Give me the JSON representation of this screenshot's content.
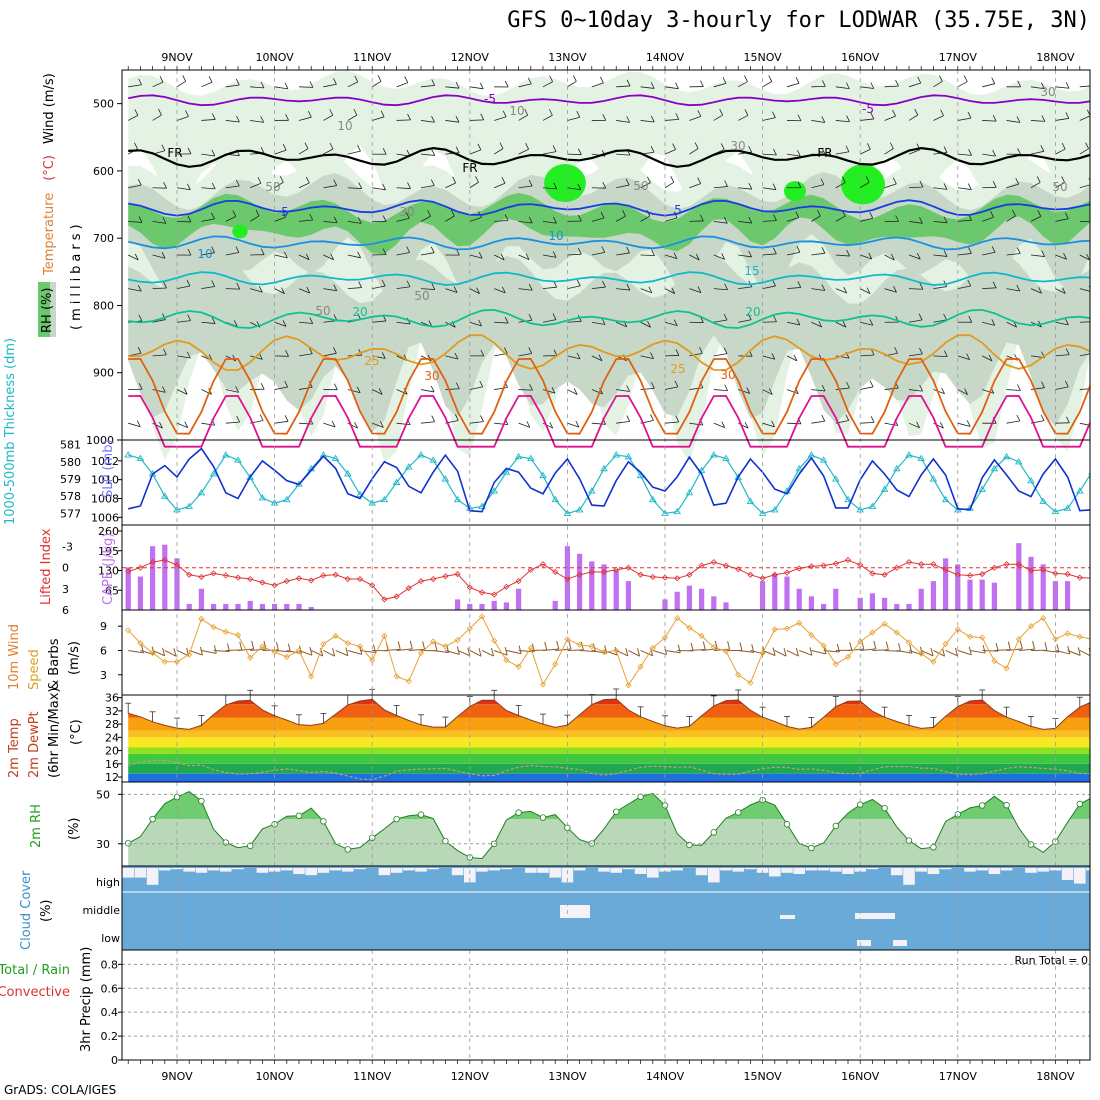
{
  "title": "GFS 0~10day 3-hourly for LODWAR (35.75E, 3N)",
  "footer": "GrADS: COLA/IGES",
  "run_total": "Run Total = 0",
  "colors": {
    "grid": "#9a9a9a",
    "rh_light": "#e4f2e4",
    "rh_mid": "#c8d8c8",
    "rh_dark": "#6cc86c",
    "rh_bright": "#22ee22",
    "temp_m5": "#8a00c8",
    "temp_fr": "#000000",
    "temp_5": "#1440e0",
    "temp_10": "#1a90e0",
    "temp_15": "#10b8c8",
    "temp_20": "#10c090",
    "temp_25": "#e09a20",
    "temp_30": "#e06010",
    "temp_35": "#e01090",
    "slp": "#1030d0",
    "thickness": "#20b8c8",
    "cape": "#c070f0",
    "lifted": "#e03030",
    "wind_speed": "#e8a030",
    "barbs": "#8a5a2a",
    "rh_line": "#208020",
    "cloud": "#6aaad8",
    "cloud_bg": "#f4f2f8"
  },
  "time_axis": {
    "dates": [
      "9NOV",
      "10NOV",
      "11NOV",
      "12NOV",
      "13NOV",
      "14NOV",
      "15NOV",
      "16NOV",
      "17NOV",
      "18NOV"
    ]
  },
  "chart_data": [
    {
      "type": "line",
      "panel": "upper-air cross section",
      "ylabel_parts": [
        "Temperature",
        "(°C)",
        "Wind (m/s)"
      ],
      "ylabel2": "(millibars)",
      "legend_label": "RH (%)",
      "yticks": [
        "500",
        "600",
        "700",
        "800",
        "900",
        "1000"
      ],
      "ylim": [
        450,
        1000
      ],
      "x_start_hours": -12,
      "x_end_hours": 234,
      "step_hours": 3,
      "contour_labels": [
        "-5",
        "-5",
        "FR",
        "FR",
        "FR",
        "5",
        "5",
        "10",
        "10",
        "15",
        "20",
        "20",
        "25",
        "25",
        "30",
        "30"
      ],
      "rh_labels": [
        "10",
        "10",
        "30",
        "30",
        "30",
        "50",
        "50",
        "50",
        "50",
        "50"
      ],
      "isotherms": [
        {
          "label": "-5",
          "mean_p": 495,
          "amp": 8
        },
        {
          "label": "FR",
          "mean_p": 580,
          "amp": 14
        },
        {
          "label": "5",
          "mean_p": 655,
          "amp": 12
        },
        {
          "label": "10",
          "mean_p": 707,
          "amp": 10
        },
        {
          "label": "15",
          "mean_p": 760,
          "amp": 10
        },
        {
          "label": "20",
          "mean_p": 820,
          "amp": 14
        },
        {
          "label": "25",
          "mean_p": 870,
          "amp": 28
        },
        {
          "label": "30",
          "mean_p": 935,
          "amp": 60
        },
        {
          "label": "35",
          "mean_p": 990,
          "amp": 50
        }
      ]
    },
    {
      "type": "line",
      "panel": "slp-thickness",
      "ylabel_left": "1000-500mb Thickness (dm)",
      "ylabel_right": "SLP (mb)",
      "left_ticks": [
        "581",
        "580",
        "579",
        "578",
        "577"
      ],
      "right_ticks": [
        "1012",
        "1010",
        "1008",
        "1006"
      ],
      "series": [
        {
          "name": "SLP",
          "values": [
            1006.9,
            1007.2,
            1010.6,
            1011.5,
            1010.3,
            1012.2,
            1013.3,
            1011.4,
            1008.6,
            1008.0,
            1010.3,
            1012.0,
            1011.0,
            1009.9,
            1009.5,
            1011.0,
            1012.5,
            1011.2,
            1008.5,
            1008.0,
            1010.1,
            1011.9,
            1011.3,
            1009.3,
            1008.6,
            1010.8,
            1012.6,
            1010.9,
            1006.7,
            1006.6,
            1009.7,
            1011.2,
            1010.8,
            1009.1,
            1008.5,
            1010.7,
            1012.2,
            1010.1,
            1007.3,
            1007.2,
            1009.9,
            1011.9,
            1010.8,
            1009.2,
            1008.8,
            1010.3,
            1012.4,
            1010.6,
            1007.3,
            1007.5,
            1010.3,
            1012.2,
            1010.8,
            1009.0,
            1008.5,
            1010.6,
            1012.3,
            1010.4,
            1007.0,
            1007.0,
            1010.0,
            1012.0,
            1010.6,
            1008.9,
            1008.2,
            1010.5,
            1012.2,
            1010.5,
            1006.9,
            1006.8,
            1010.2,
            1012.1,
            1010.5,
            1008.8,
            1008.2,
            1010.6,
            1012.2,
            1010.3,
            1006.7,
            1006.8,
            1010.1,
            1012.1,
            1010.2,
            1008.3
          ]
        },
        {
          "name": "Thickness",
          "values": [
            580.4,
            580.2,
            579.3,
            578.0,
            577.2,
            577.4,
            578.2,
            579.3,
            580.4,
            580.1,
            579.1,
            577.9,
            577.6,
            577.8,
            578.7,
            579.6,
            580.4,
            580.2,
            579.3,
            578.1,
            577.6,
            577.8,
            578.8,
            579.7,
            580.4,
            580.1,
            579.0,
            577.8,
            577.3,
            577.4,
            578.3,
            579.4,
            580.3,
            580.2,
            579.2,
            577.8,
            577.0,
            577.2,
            578.3,
            579.6,
            580.4,
            580.3,
            579.2,
            577.8,
            577.0,
            577.1,
            578.2,
            579.5,
            580.4,
            580.2,
            579.1,
            577.7,
            577.0,
            577.2,
            578.3,
            579.6,
            580.4,
            580.1,
            579.0,
            577.8,
            577.2,
            577.4,
            578.4,
            579.6,
            580.4,
            580.2,
            579.0,
            577.8,
            577.2,
            577.3,
            578.4,
            579.6,
            580.3,
            580.0,
            578.9,
            577.7,
            577.1,
            577.3,
            578.3,
            579.4,
            580.2,
            580.0,
            578.8,
            577.4
          ]
        }
      ]
    },
    {
      "type": "bar",
      "panel": "cape-lifted-index",
      "ylabel_left": "Lifted Index",
      "ylabel_right": "CAPE (J/kg)",
      "left_ticks": [
        "-3",
        "0",
        "3",
        "6"
      ],
      "right_ticks": [
        "260",
        "195",
        "130",
        "65"
      ],
      "series": [
        {
          "name": "CAPE",
          "values": [
            140,
            110,
            210,
            215,
            170,
            20,
            70,
            20,
            20,
            20,
            30,
            20,
            20,
            20,
            20,
            10,
            0,
            0,
            0,
            0,
            0,
            0,
            0,
            0,
            0,
            0,
            0,
            35,
            20,
            20,
            30,
            25,
            70,
            0,
            0,
            30,
            210,
            185,
            160,
            150,
            130,
            95,
            0,
            0,
            35,
            60,
            80,
            70,
            45,
            25,
            0,
            0,
            95,
            120,
            110,
            70,
            45,
            20,
            70,
            0,
            40,
            55,
            40,
            20,
            20,
            70,
            95,
            170,
            150,
            100,
            100,
            90,
            0,
            220,
            175,
            150,
            95,
            95,
            0,
            55,
            55,
            65,
            0,
            0
          ]
        },
        {
          "name": "Lifted Index",
          "values": [
            0.5,
            0.0,
            -0.8,
            -1.1,
            -0.4,
            1.0,
            1.3,
            0.8,
            1.1,
            1.4,
            1.6,
            2.1,
            2.5,
            1.9,
            1.5,
            1.8,
            1.1,
            1.0,
            1.6,
            1.6,
            2.5,
            4.5,
            4.1,
            2.9,
            1.9,
            1.6,
            1.2,
            0.9,
            2.8,
            3.5,
            3.8,
            2.7,
            1.9,
            0.3,
            -0.5,
            0.6,
            1.6,
            1.0,
            0.6,
            0.6,
            0.3,
            0.0,
            1.0,
            1.3,
            1.4,
            1.5,
            1.0,
            -0.3,
            -0.8,
            -0.3,
            0.2,
            1.0,
            1.5,
            1.0,
            0.7,
            0.1,
            -0.2,
            -0.3,
            -0.6,
            -1.1,
            -0.4,
            0.8,
            1.0,
            0.0,
            -0.8,
            -0.5,
            -0.5,
            0.3,
            1.0,
            1.1,
            0.9,
            0.0,
            -0.5,
            -0.5,
            0.4,
            0.3,
            0.8,
            0.9,
            1.4,
            1.5,
            0.5,
            0.0,
            1.1,
            2.2
          ]
        }
      ]
    },
    {
      "type": "line",
      "panel": "10m wind",
      "ylabel_parts": [
        "10m Wind",
        "Speed",
        "& Barbs"
      ],
      "ylabel_units": "(m/s)",
      "yticks": [
        "9",
        "6",
        "3"
      ],
      "ylim": [
        0.5,
        11
      ],
      "series": [
        {
          "name": "Speed",
          "values": [
            8.5,
            6.9,
            5.7,
            4.6,
            4.6,
            5.5,
            9.9,
            8.9,
            8.3,
            7.9,
            5.1,
            6.5,
            5.8,
            5.2,
            6.0,
            2.8,
            6.8,
            7.8,
            6.9,
            6.5,
            4.8,
            7.8,
            2.8,
            2.2,
            5.7,
            7.1,
            6.5,
            7.3,
            8.7,
            10.2,
            7.2,
            4.8,
            4.0,
            6.3,
            1.8,
            4.3,
            7.4,
            6.7,
            6.5,
            5.8,
            6.0,
            1.7,
            4.0,
            6.3,
            7.6,
            10.0,
            8.8,
            7.8,
            6.4,
            5.9,
            3.0,
            2.0,
            5.7,
            8.6,
            8.7,
            9.4,
            7.9,
            6.6,
            4.3,
            5.2,
            7.1,
            8.2,
            9.3,
            8.2,
            7.0,
            5.6,
            4.6,
            6.8,
            8.6,
            7.7,
            7.6,
            4.7,
            3.8,
            7.4,
            9.0,
            10.0,
            7.4,
            8.1,
            7.7,
            7.4,
            7.5,
            3.8,
            1.3,
            7.1
          ]
        }
      ]
    },
    {
      "type": "area",
      "panel": "2m temperature",
      "ylabel_parts": [
        "2m Temp",
        "2m DewPt",
        "(6hr Min/Max)"
      ],
      "ylabel_units": "(°C)",
      "yticks": [
        "36",
        "32",
        "28",
        "24",
        "20",
        "16",
        "12"
      ],
      "ylim": [
        10.5,
        36.8
      ],
      "series": [
        {
          "name": "2m Temp",
          "values": [
            31.3,
            30.2,
            28.7,
            27.6,
            26.8,
            26.4,
            27.6,
            30.9,
            33.8,
            35.0,
            35.2,
            32.3,
            30.5,
            29.2,
            27.8,
            27.6,
            28.2,
            31.0,
            33.8,
            35.0,
            35.5,
            32.3,
            30.6,
            29.1,
            27.8,
            27.1,
            27.1,
            30.3,
            33.3,
            35.2,
            35.2,
            32.1,
            30.6,
            29.2,
            28.0,
            27.0,
            27.7,
            30.8,
            33.9,
            35.4,
            35.6,
            32.3,
            30.2,
            28.8,
            27.5,
            26.8,
            27.3,
            30.5,
            33.5,
            35.1,
            35.3,
            32.2,
            30.1,
            28.8,
            27.3,
            26.5,
            27.0,
            30.1,
            33.3,
            34.9,
            35.0,
            31.9,
            30.1,
            28.8,
            27.6,
            26.7,
            27.0,
            30.4,
            33.3,
            35.0,
            35.3,
            32.1,
            30.1,
            28.8,
            27.3,
            26.4,
            26.7,
            30.2,
            33.1,
            34.8,
            35.1,
            32.0,
            30.5,
            29.1,
            27.9,
            27.1,
            26.2,
            30.7
          ]
        },
        {
          "name": "2m DewPt",
          "values": [
            15.5,
            16.5,
            17.0,
            17.0,
            16.4,
            15.4,
            15.6,
            14.2,
            13.4,
            12.9,
            13.0,
            13.4,
            14.0,
            14.5,
            13.9,
            13.4,
            13.7,
            13.2,
            12.3,
            11.4,
            11.2,
            12.3,
            13.8,
            14.2,
            14.4,
            14.5,
            14.6,
            13.8,
            13.0,
            12.4,
            12.5,
            13.9,
            15.0,
            15.5,
            15.2,
            15.1,
            14.6,
            14.3,
            13.1,
            12.6,
            13.0,
            14.0,
            14.9,
            15.3,
            15.2,
            14.9,
            15.1,
            14.1,
            13.0,
            12.8,
            12.9,
            13.8,
            14.5,
            15.0,
            14.9,
            14.3,
            14.5,
            14.0,
            13.3,
            13.0,
            13.1,
            14.2,
            15.1,
            15.2,
            15.2,
            14.7,
            14.6,
            13.6,
            12.9,
            12.7,
            13.0,
            13.8,
            14.6,
            15.1,
            14.9,
            14.6,
            14.4,
            13.9,
            13.2,
            12.9,
            13.1,
            13.8,
            14.2,
            14.0
          ]
        }
      ]
    },
    {
      "type": "area",
      "panel": "2m RH",
      "ylabel": "2m RH",
      "ylabel_units": "(%)",
      "yticks": [
        "50",
        "30"
      ],
      "ylim": [
        21,
        55
      ],
      "series": [
        {
          "name": "2m RH",
          "values": [
            30.2,
            32.9,
            40.0,
            46.2,
            48.9,
            51.1,
            47.3,
            35.8,
            30.5,
            28.4,
            29.2,
            36.0,
            37.9,
            41.1,
            41.3,
            44.4,
            39.1,
            30.0,
            27.7,
            28.5,
            32.4,
            36.0,
            40.0,
            41.3,
            41.8,
            40.2,
            31.1,
            27.2,
            24.5,
            24.0,
            30.0,
            39.6,
            42.6,
            43.1,
            40.6,
            41.8,
            36.5,
            31.7,
            30.1,
            36.0,
            43.0,
            46.1,
            49.0,
            50.4,
            45.5,
            34.1,
            29.5,
            29.4,
            34.6,
            40.4,
            42.7,
            45.7,
            47.7,
            45.6,
            37.9,
            30.1,
            28.3,
            30.3,
            37.2,
            42.4,
            45.8,
            47.9,
            44.4,
            36.8,
            31.3,
            28.0,
            28.6,
            39.0,
            41.9,
            44.5,
            45.5,
            49.2,
            45.6,
            36.4,
            29.7,
            26.5,
            30.9,
            38.7,
            46.1,
            48.7,
            51.7,
            45.2,
            38.5,
            30.2,
            28.4,
            28.7,
            33.5,
            37.9,
            42.0,
            42.9,
            46.9,
            44.9
          ]
        }
      ]
    },
    {
      "type": "bar",
      "panel": "cloud cover",
      "ylabel_parts": [
        "Cloud Cover",
        "(%)"
      ],
      "level_labels": [
        "high",
        "middle",
        "low"
      ],
      "series": [
        {
          "name": "high",
          "values": [
            60,
            60,
            30,
            90,
            95,
            85,
            80,
            90,
            85,
            95,
            100,
            80,
            85,
            90,
            75,
            70,
            80,
            90,
            85,
            95,
            100,
            70,
            80,
            90,
            85,
            95,
            100,
            70,
            40,
            85,
            90,
            95,
            100,
            80,
            80,
            60,
            40,
            90,
            100,
            85,
            80,
            95,
            75,
            60,
            85,
            90,
            100,
            70,
            40,
            90,
            85,
            95,
            80,
            65,
            80,
            75,
            90,
            90,
            85,
            75,
            85,
            95,
            100,
            70,
            30,
            85,
            75,
            95,
            100,
            85,
            90,
            75,
            90,
            100,
            80,
            85,
            90,
            50,
            35,
            90,
            95,
            85,
            100,
            60
          ]
        }
      ]
    },
    {
      "type": "line",
      "panel": "3hr precipitation",
      "ylabel_parts": [
        "Total / Rain",
        "Convective"
      ],
      "ylabel_units": "3hr Precip (mm)",
      "yticks": [
        "0.8",
        "0.6",
        "0.4",
        "0.2",
        "0"
      ],
      "ylim": [
        0,
        0.92
      ],
      "series": [
        {
          "name": "Total / Rain",
          "values": []
        }
      ]
    }
  ]
}
